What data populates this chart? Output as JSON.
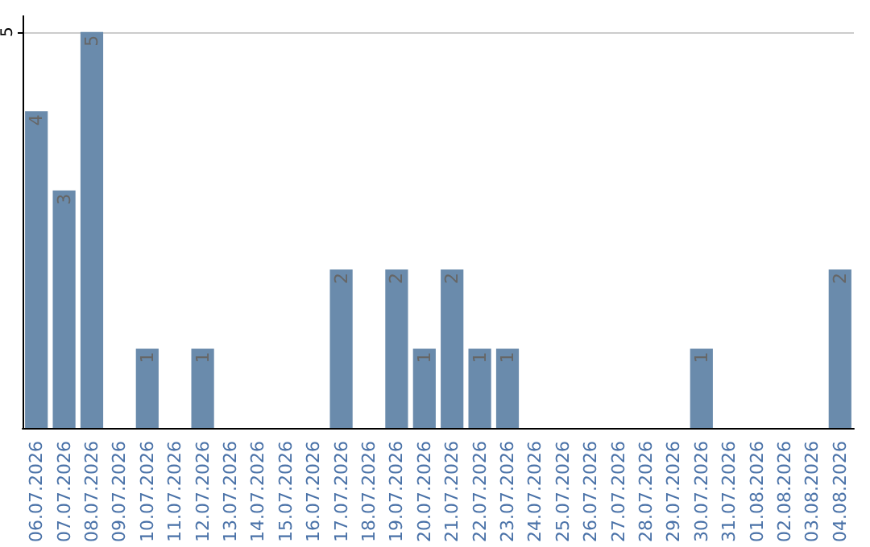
{
  "chart_data": {
    "type": "bar",
    "categories": [
      "06.07.2026",
      "07.07.2026",
      "08.07.2026",
      "09.07.2026",
      "10.07.2026",
      "11.07.2026",
      "12.07.2026",
      "13.07.2026",
      "14.07.2026",
      "15.07.2026",
      "16.07.2026",
      "17.07.2026",
      "18.07.2026",
      "19.07.2026",
      "20.07.2026",
      "21.07.2026",
      "22.07.2026",
      "23.07.2026",
      "24.07.2026",
      "25.07.2026",
      "26.07.2026",
      "27.07.2026",
      "28.07.2026",
      "29.07.2026",
      "30.07.2026",
      "31.07.2026",
      "01.08.2026",
      "02.08.2026",
      "03.08.2026",
      "04.08.2026"
    ],
    "values": [
      4,
      3,
      5,
      0,
      1,
      0,
      1,
      0,
      0,
      0,
      0,
      2,
      0,
      2,
      1,
      2,
      1,
      1,
      0,
      0,
      0,
      0,
      0,
      0,
      1,
      0,
      0,
      0,
      0,
      2
    ],
    "value_labels": [
      "4",
      "3",
      "5",
      null,
      "1",
      null,
      "1",
      null,
      null,
      null,
      null,
      "2",
      null,
      "2",
      "1",
      "2",
      "1",
      "1",
      null,
      null,
      null,
      null,
      null,
      null,
      "1",
      null,
      null,
      null,
      null,
      "2"
    ],
    "color": "#6a8bac",
    "ylim": [
      0,
      5.2
    ],
    "yticks": [
      5
    ],
    "grid": "y"
  }
}
